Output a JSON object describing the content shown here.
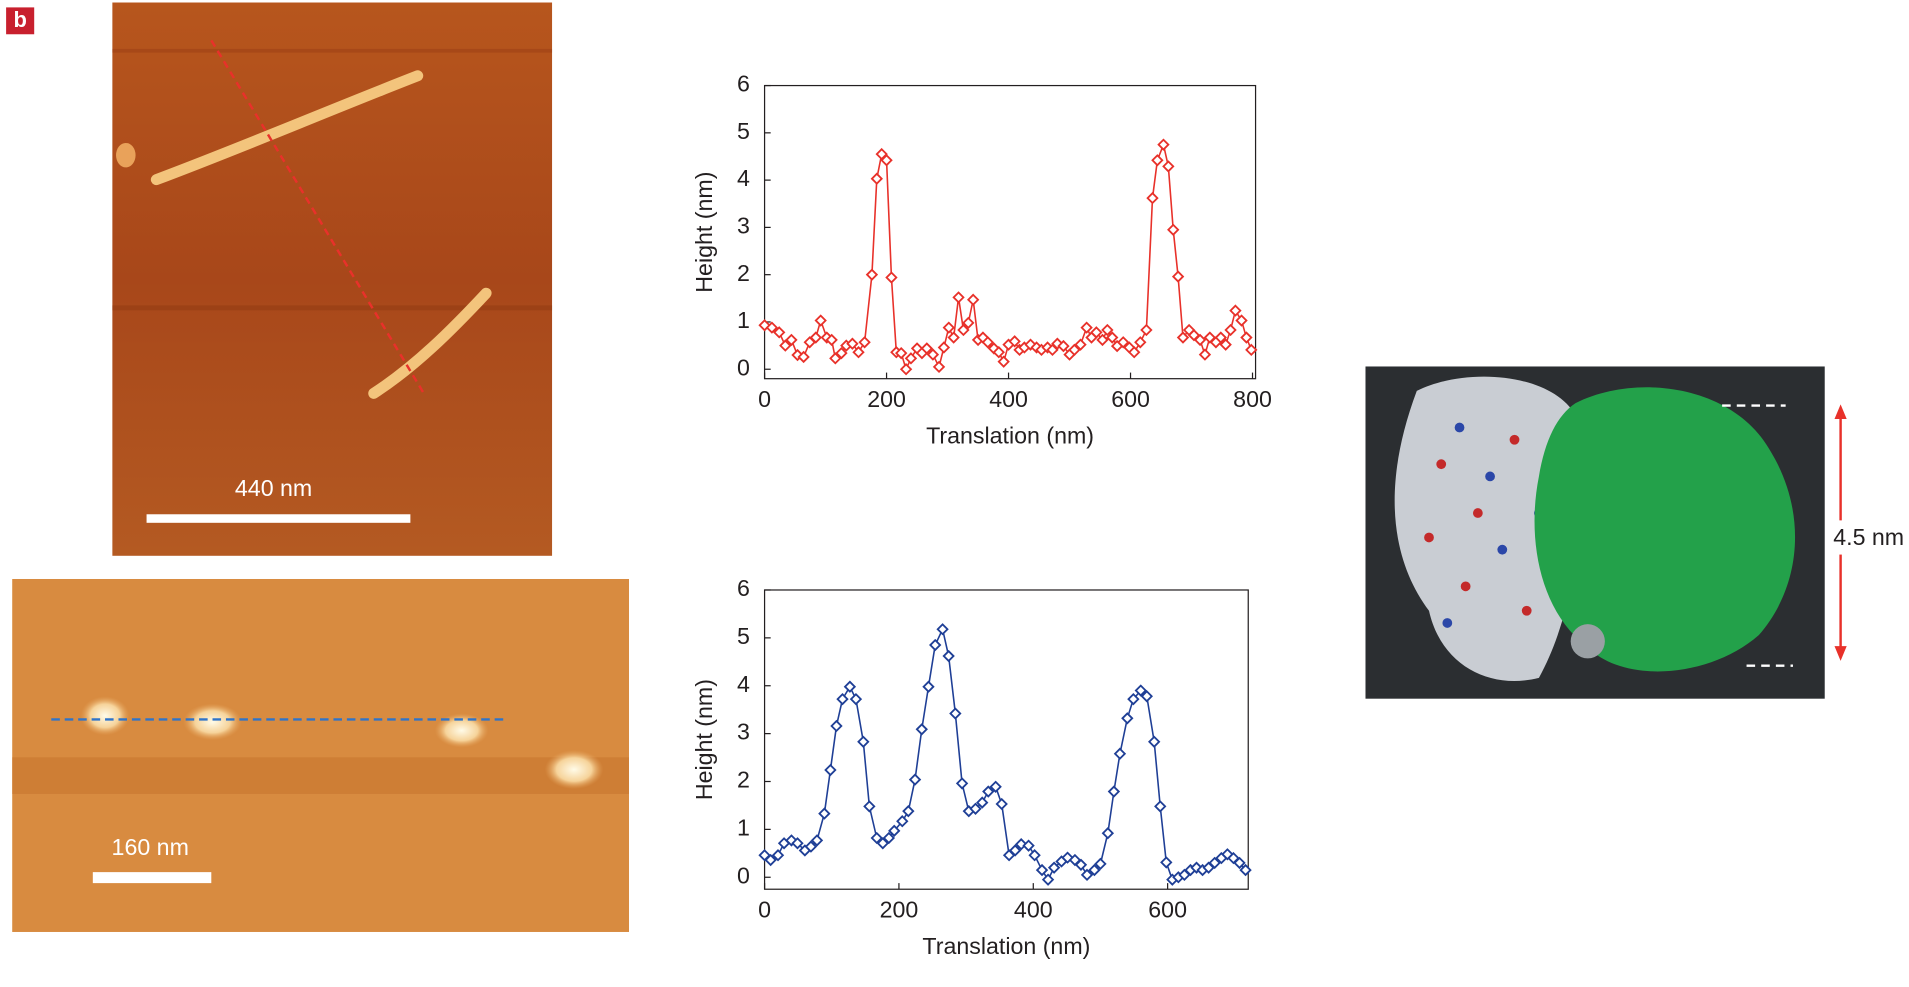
{
  "panel_label": "b",
  "images": [
    {
      "scale_label": "440 nm"
    },
    {
      "scale_label": "160 nm"
    },
    {
      "dimension_label": "4.5 nm"
    }
  ],
  "chart_data": [
    {
      "type": "line",
      "xlabel": "Translation (nm)",
      "ylabel": "Height (nm)",
      "xlim": [
        0,
        805
      ],
      "ylim": [
        -0.2,
        6
      ],
      "xticks": [
        0,
        200,
        400,
        600,
        800
      ],
      "yticks": [
        0,
        1,
        2,
        3,
        4,
        5,
        6
      ],
      "marker": "diamond",
      "x": [
        0,
        12,
        24,
        34,
        44,
        54,
        64,
        74,
        84,
        92,
        102,
        110,
        116,
        126,
        134,
        144,
        154,
        164,
        176,
        184,
        192,
        200,
        208,
        216,
        224,
        232,
        240,
        250,
        258,
        266,
        276,
        286,
        294,
        302,
        310,
        318,
        326,
        334,
        342,
        350,
        358,
        366,
        376,
        384,
        392,
        400,
        410,
        418,
        426,
        436,
        446,
        454,
        464,
        472,
        480,
        490,
        500,
        508,
        518,
        528,
        536,
        544,
        554,
        562,
        570,
        578,
        588,
        598,
        606,
        616,
        626,
        636,
        644,
        654,
        662,
        670,
        678,
        686,
        696,
        704,
        714,
        722,
        730,
        740,
        748,
        756,
        764,
        772,
        782,
        790,
        798
      ],
      "series": [
        {
          "color": "#e8312a",
          "values": [
            0.93,
            0.88,
            0.78,
            0.5,
            0.62,
            0.3,
            0.26,
            0.57,
            0.67,
            1.03,
            0.67,
            0.62,
            0.23,
            0.34,
            0.5,
            0.54,
            0.36,
            0.57,
            2.0,
            4.03,
            4.55,
            4.42,
            1.94,
            0.36,
            0.34,
            0.0,
            0.23,
            0.44,
            0.34,
            0.44,
            0.31,
            0.05,
            0.46,
            0.88,
            0.67,
            1.52,
            0.83,
            0.98,
            1.47,
            0.62,
            0.67,
            0.57,
            0.44,
            0.36,
            0.16,
            0.52,
            0.59,
            0.41,
            0.46,
            0.52,
            0.46,
            0.41,
            0.46,
            0.41,
            0.54,
            0.49,
            0.31,
            0.41,
            0.52,
            0.88,
            0.67,
            0.78,
            0.62,
            0.83,
            0.67,
            0.49,
            0.57,
            0.46,
            0.36,
            0.57,
            0.83,
            3.62,
            4.42,
            4.75,
            4.29,
            2.95,
            1.96,
            0.67,
            0.83,
            0.72,
            0.62,
            0.31,
            0.67,
            0.57,
            0.67,
            0.52,
            0.83,
            1.24,
            1.03,
            0.67,
            0.41
          ]
        }
      ]
    },
    {
      "type": "line",
      "xlabel": "Translation (nm)",
      "ylabel": "Height (nm)",
      "xlim": [
        0,
        720
      ],
      "ylim": [
        -0.25,
        6
      ],
      "xticks": [
        0,
        200,
        400,
        600
      ],
      "yticks": [
        0,
        1,
        2,
        3,
        4,
        5,
        6
      ],
      "marker": "diamond",
      "x": [
        0,
        9,
        20,
        29,
        40,
        49,
        60,
        69,
        78,
        89,
        98,
        107,
        116,
        127,
        136,
        147,
        156,
        167,
        176,
        185,
        193,
        205,
        214,
        224,
        234,
        244,
        254,
        265,
        274,
        284,
        294,
        304,
        314,
        324,
        333,
        344,
        353,
        364,
        373,
        382,
        393,
        402,
        413,
        422,
        431,
        442,
        451,
        462,
        471,
        480,
        491,
        500,
        511,
        520,
        529,
        540,
        549,
        560,
        569,
        580,
        589,
        598,
        607,
        616,
        625,
        634,
        643,
        652,
        661,
        670,
        680,
        689,
        698,
        707,
        716
      ],
      "series": [
        {
          "color": "#1f3f96",
          "values": [
            0.46,
            0.36,
            0.46,
            0.71,
            0.77,
            0.71,
            0.56,
            0.64,
            0.77,
            1.33,
            2.24,
            3.16,
            3.72,
            3.98,
            3.72,
            2.83,
            1.48,
            0.82,
            0.71,
            0.82,
            0.97,
            1.17,
            1.38,
            2.04,
            3.09,
            3.98,
            4.85,
            5.18,
            4.62,
            3.42,
            1.96,
            1.38,
            1.43,
            1.56,
            1.79,
            1.89,
            1.53,
            0.46,
            0.56,
            0.69,
            0.66,
            0.46,
            0.15,
            -0.05,
            0.2,
            0.33,
            0.41,
            0.36,
            0.26,
            0.05,
            0.15,
            0.28,
            0.92,
            1.79,
            2.58,
            3.32,
            3.72,
            3.9,
            3.78,
            2.83,
            1.48,
            0.31,
            -0.05,
            0.0,
            0.05,
            0.15,
            0.2,
            0.15,
            0.2,
            0.3,
            0.4,
            0.48,
            0.4,
            0.3,
            0.15
          ]
        }
      ]
    }
  ]
}
